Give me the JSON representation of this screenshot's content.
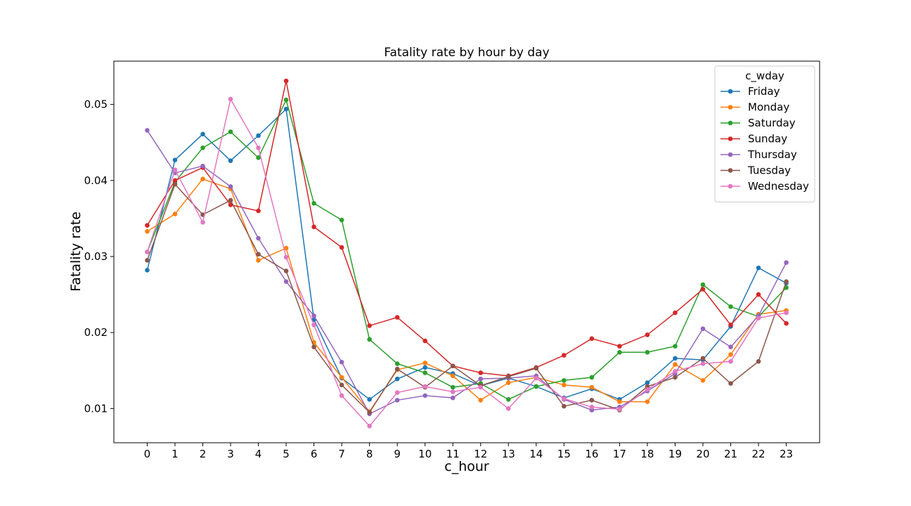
{
  "chart_data": {
    "type": "line",
    "title": "Fatality rate by hour by day",
    "xlabel": "c_hour",
    "ylabel": "Fatality rate",
    "x": [
      0,
      1,
      2,
      3,
      4,
      5,
      6,
      7,
      8,
      9,
      10,
      11,
      12,
      13,
      14,
      15,
      16,
      17,
      18,
      19,
      20,
      21,
      22,
      23
    ],
    "yticks": [
      0.01,
      0.02,
      0.03,
      0.04,
      0.05
    ],
    "ytick_labels": [
      "0.01",
      "0.02",
      "0.03",
      "0.04",
      "0.05"
    ],
    "ylim": [
      0.0055,
      0.0557
    ],
    "xlim": [
      -1.2,
      24.2
    ],
    "grid": false,
    "legend": {
      "title": "c_wday",
      "position": "top-right"
    },
    "series": [
      {
        "name": "Friday",
        "color": "#1f77b4",
        "values": [
          0.0282,
          0.0427,
          0.0461,
          0.0426,
          0.0459,
          0.0494,
          0.0217,
          0.014,
          0.0112,
          0.0139,
          0.0154,
          0.0146,
          0.013,
          0.014,
          0.0129,
          0.0114,
          0.0126,
          0.0112,
          0.0134,
          0.0166,
          0.0164,
          0.0208,
          0.0285,
          0.0265
        ]
      },
      {
        "name": "Monday",
        "color": "#ff7f0e",
        "values": [
          0.0333,
          0.0356,
          0.0402,
          0.0389,
          0.0295,
          0.0311,
          0.0187,
          0.0141,
          0.0096,
          0.0151,
          0.016,
          0.0143,
          0.0111,
          0.0134,
          0.0141,
          0.0131,
          0.0128,
          0.0109,
          0.0109,
          0.0158,
          0.0137,
          0.0171,
          0.0224,
          0.0229
        ]
      },
      {
        "name": "Saturday",
        "color": "#2ca02c",
        "values": [
          0.0306,
          0.0398,
          0.0443,
          0.0464,
          0.043,
          0.0506,
          0.037,
          0.0348,
          0.0191,
          0.0159,
          0.0147,
          0.0128,
          0.0133,
          0.0112,
          0.0129,
          0.0137,
          0.0141,
          0.0174,
          0.0174,
          0.0182,
          0.0263,
          0.0234,
          0.0221,
          0.0259
        ]
      },
      {
        "name": "Sunday",
        "color": "#d62728",
        "values": [
          0.0341,
          0.04,
          0.0417,
          0.0368,
          0.036,
          0.0531,
          0.0339,
          0.0312,
          0.0209,
          0.022,
          0.0189,
          0.0156,
          0.0147,
          0.0143,
          0.0154,
          0.017,
          0.0192,
          0.0182,
          0.0197,
          0.0226,
          0.0257,
          0.021,
          0.025,
          0.0212
        ]
      },
      {
        "name": "Thursday",
        "color": "#9467bd",
        "values": [
          0.0466,
          0.041,
          0.0419,
          0.0392,
          0.0324,
          0.0267,
          0.0222,
          0.0161,
          0.0093,
          0.0111,
          0.0117,
          0.0114,
          0.0139,
          0.014,
          0.0143,
          0.0112,
          0.0098,
          0.0102,
          0.0123,
          0.0146,
          0.0205,
          0.0181,
          0.0222,
          0.0292
        ]
      },
      {
        "name": "Tuesday",
        "color": "#8c564b",
        "values": [
          0.0295,
          0.0395,
          0.0355,
          0.0374,
          0.0303,
          0.0281,
          0.0181,
          0.0131,
          0.0095,
          0.0152,
          0.0128,
          0.0156,
          0.013,
          0.0142,
          0.0153,
          0.0103,
          0.0111,
          0.0098,
          0.0129,
          0.0141,
          0.0166,
          0.0133,
          0.0162,
          0.0267
        ]
      },
      {
        "name": "Wednesday",
        "color": "#e377c2",
        "values": [
          0.0306,
          0.0414,
          0.0345,
          0.0507,
          0.0443,
          0.0299,
          0.021,
          0.0117,
          0.0077,
          0.0121,
          0.0129,
          0.0122,
          0.0128,
          0.01,
          0.014,
          0.0113,
          0.0102,
          0.0099,
          0.0125,
          0.0149,
          0.0159,
          0.0162,
          0.0219,
          0.0226
        ]
      }
    ]
  }
}
